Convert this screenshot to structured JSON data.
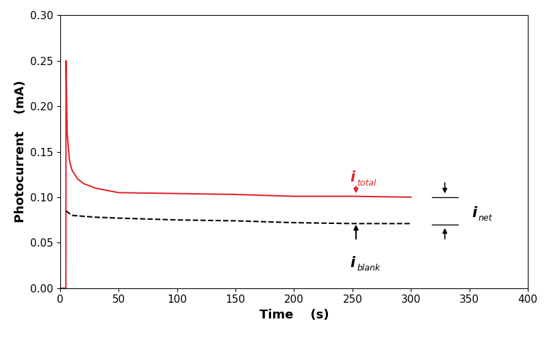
{
  "chart_data": {
    "type": "line",
    "x_label": "Time    (s)",
    "y_label": "Photocurrent    (mA)",
    "xlim": [
      0,
      400
    ],
    "xticks": [
      0,
      50,
      100,
      150,
      200,
      250,
      300,
      350,
      400
    ],
    "ylim": [
      0,
      0.3
    ],
    "yticks": [
      {
        "value": 0,
        "label": "0.00"
      },
      {
        "value": 0.05,
        "label": "0.05"
      },
      {
        "value": 0.1,
        "label": "0.10"
      },
      {
        "value": 0.15,
        "label": "0.15"
      },
      {
        "value": 0.2,
        "label": "0.20"
      },
      {
        "value": 0.25,
        "label": "0.25"
      },
      {
        "value": 0.3,
        "label": "0.30"
      }
    ],
    "grid": false,
    "series": [
      {
        "color": "#e0262e",
        "line_style": "solid",
        "x": [
          0,
          4.9,
          5,
          6,
          8,
          10,
          15,
          20,
          30,
          50,
          100,
          150,
          200,
          250,
          300
        ],
        "values": [
          0,
          0,
          0.25,
          0.17,
          0.14,
          0.13,
          0.12,
          0.115,
          0.11,
          0.105,
          0.104,
          0.103,
          0.101,
          0.101,
          0.1
        ]
      },
      {
        "color": "#000000",
        "line_style": "dashed",
        "x": [
          5,
          10,
          30,
          50,
          100,
          150,
          200,
          250,
          300
        ],
        "values": [
          0.085,
          0.08,
          0.078,
          0.077,
          0.075,
          0.074,
          0.072,
          0.071,
          0.071
        ]
      }
    ],
    "annotations": [
      {
        "text": "i",
        "sub": "total",
        "color": "#e0262e"
      },
      {
        "text": "i",
        "sub": "blank",
        "color": "#000000"
      },
      {
        "text": "i",
        "sub": "net",
        "color": "#000000"
      }
    ]
  }
}
